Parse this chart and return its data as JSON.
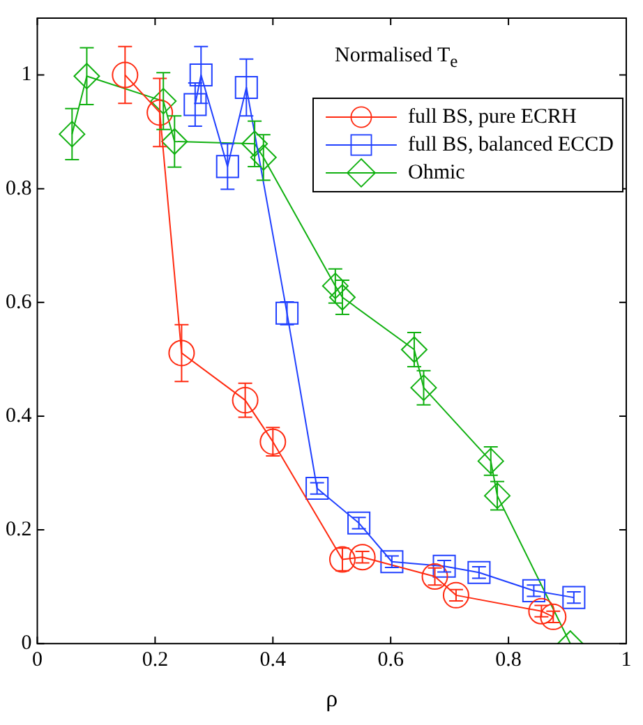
{
  "chart_data": {
    "type": "line",
    "title": "Normalised T$_{e}$",
    "xlabel": "ρ",
    "xlim": [
      0,
      1
    ],
    "xticks": [
      0,
      0.2,
      0.4,
      0.6,
      0.8,
      1
    ],
    "ylim": [
      0,
      1.1
    ],
    "yticks": [
      0,
      0.2,
      0.4,
      0.6,
      0.8,
      1
    ],
    "grid": false,
    "legend": "top right",
    "line_style": "solid",
    "series": [
      {
        "name": "full BS, pure ECRH",
        "color": "#ff2a10",
        "marker": "circle",
        "x": [
          0.149,
          0.208,
          0.245,
          0.353,
          0.4,
          0.518,
          0.552,
          0.675,
          0.711,
          0.856,
          0.876
        ],
        "values": [
          1.0,
          0.934,
          0.511,
          0.428,
          0.355,
          0.148,
          0.152,
          0.118,
          0.085,
          0.057,
          0.047
        ],
        "errors": [
          0.05,
          0.06,
          0.05,
          0.03,
          0.025,
          0.02,
          0.01,
          0.015,
          0.01,
          0.01,
          0.01
        ]
      },
      {
        "name": "full BS, balanced ECCD",
        "color": "#2040ff",
        "marker": "square",
        "x": [
          0.268,
          0.278,
          0.323,
          0.355,
          0.424,
          0.475,
          0.546,
          0.602,
          0.691,
          0.75,
          0.843,
          0.911
        ],
        "values": [
          0.948,
          1.0,
          0.839,
          0.978,
          0.581,
          0.273,
          0.212,
          0.144,
          0.136,
          0.125,
          0.093,
          0.081
        ],
        "errors": [
          0.038,
          0.05,
          0.04,
          0.05,
          0.02,
          0.01,
          0.01,
          0.01,
          0.01,
          0.01,
          0.01,
          0.01
        ]
      },
      {
        "name": "Ohmic",
        "color": "#10b010",
        "marker": "diamond",
        "x": [
          0.059,
          0.084,
          0.214,
          0.233,
          0.369,
          0.384,
          0.506,
          0.518,
          0.64,
          0.656,
          0.77,
          0.781,
          0.905
        ],
        "values": [
          0.896,
          0.998,
          0.954,
          0.883,
          0.879,
          0.855,
          0.629,
          0.609,
          0.517,
          0.45,
          0.321,
          0.26,
          0.0
        ],
        "errors": [
          0.045,
          0.05,
          0.05,
          0.045,
          0.04,
          0.04,
          0.03,
          0.03,
          0.03,
          0.03,
          0.025,
          0.025,
          null
        ]
      }
    ]
  }
}
